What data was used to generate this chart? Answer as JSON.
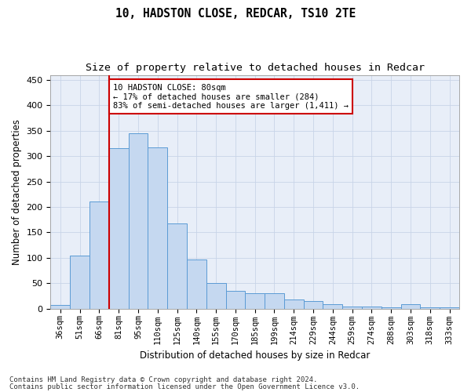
{
  "title1": "10, HADSTON CLOSE, REDCAR, TS10 2TE",
  "title2": "Size of property relative to detached houses in Redcar",
  "xlabel": "Distribution of detached houses by size in Redcar",
  "ylabel": "Number of detached properties",
  "categories": [
    "36sqm",
    "51sqm",
    "66sqm",
    "81sqm",
    "95sqm",
    "110sqm",
    "125sqm",
    "140sqm",
    "155sqm",
    "170sqm",
    "185sqm",
    "199sqm",
    "214sqm",
    "229sqm",
    "244sqm",
    "259sqm",
    "274sqm",
    "288sqm",
    "303sqm",
    "318sqm",
    "333sqm"
  ],
  "values": [
    7,
    105,
    210,
    315,
    345,
    318,
    167,
    97,
    50,
    35,
    30,
    30,
    18,
    15,
    9,
    4,
    4,
    2,
    8,
    2,
    2
  ],
  "bar_color": "#c5d8f0",
  "bar_edge_color": "#5b9bd5",
  "grid_color": "#c8d4e8",
  "vline_color": "#cc0000",
  "vline_x_index": 3,
  "annotation_text": "10 HADSTON CLOSE: 80sqm\n← 17% of detached houses are smaller (284)\n83% of semi-detached houses are larger (1,411) →",
  "annotation_box_color": "#ffffff",
  "annotation_box_edge": "#cc0000",
  "footer1": "Contains HM Land Registry data © Crown copyright and database right 2024.",
  "footer2": "Contains public sector information licensed under the Open Government Licence v3.0.",
  "ylim": [
    0,
    460
  ],
  "yticks": [
    0,
    50,
    100,
    150,
    200,
    250,
    300,
    350,
    400,
    450
  ],
  "background_color": "#e8eef8",
  "fig_width": 6.0,
  "fig_height": 5.0,
  "dpi": 100
}
